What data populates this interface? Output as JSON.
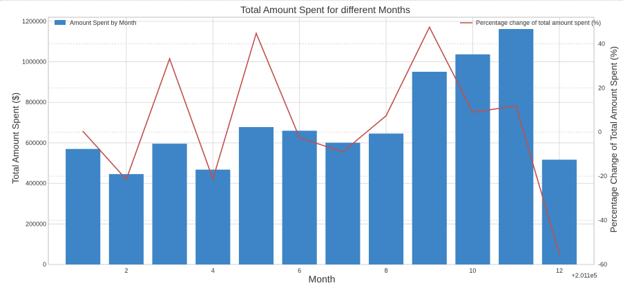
{
  "chart_data": {
    "type": "bar+line",
    "title": "Total Amount Spent for different Months",
    "xlabel": "Month",
    "ylabel_left": "Total Amount Spent ($)",
    "ylabel_right": "Percentage Change of Total Amount Spent (%)",
    "x_offset_label": "+2.011e5",
    "x_ticks": [
      "2",
      "4",
      "6",
      "8",
      "10",
      "12"
    ],
    "y_left_ticks": [
      "0",
      "200000",
      "400000",
      "600000",
      "800000",
      "1000000",
      "1200000"
    ],
    "y_right_ticks": [
      "-60",
      "-40",
      "-20",
      "0",
      "20",
      "40"
    ],
    "xlim": [
      0.2,
      12.8
    ],
    "ylim_left": [
      0,
      1220000
    ],
    "ylim_right": [
      -60,
      52
    ],
    "grid": true,
    "legend_left": {
      "position": "upper-left",
      "label": "Amount Spent by Month"
    },
    "legend_right": {
      "position": "upper-right",
      "label": "Percentage change of total amount spent (%)"
    },
    "bar_color": "#3d85c6",
    "line_color": "#c0504d",
    "bars": {
      "x": [
        1,
        2,
        3,
        4,
        5,
        6,
        7,
        8,
        9,
        10,
        11,
        12
      ],
      "values": [
        570000,
        446000,
        596000,
        468000,
        678000,
        660000,
        601000,
        646000,
        951000,
        1037000,
        1162000,
        517000
      ]
    },
    "line": {
      "x": [
        1,
        2,
        3,
        4,
        5,
        6,
        7,
        8,
        9,
        10,
        11,
        12
      ],
      "values": [
        0.3,
        -21.5,
        33.2,
        -21.3,
        44.7,
        -2.6,
        -9.0,
        7.4,
        47.5,
        9.0,
        11.8,
        -55.4
      ]
    }
  }
}
